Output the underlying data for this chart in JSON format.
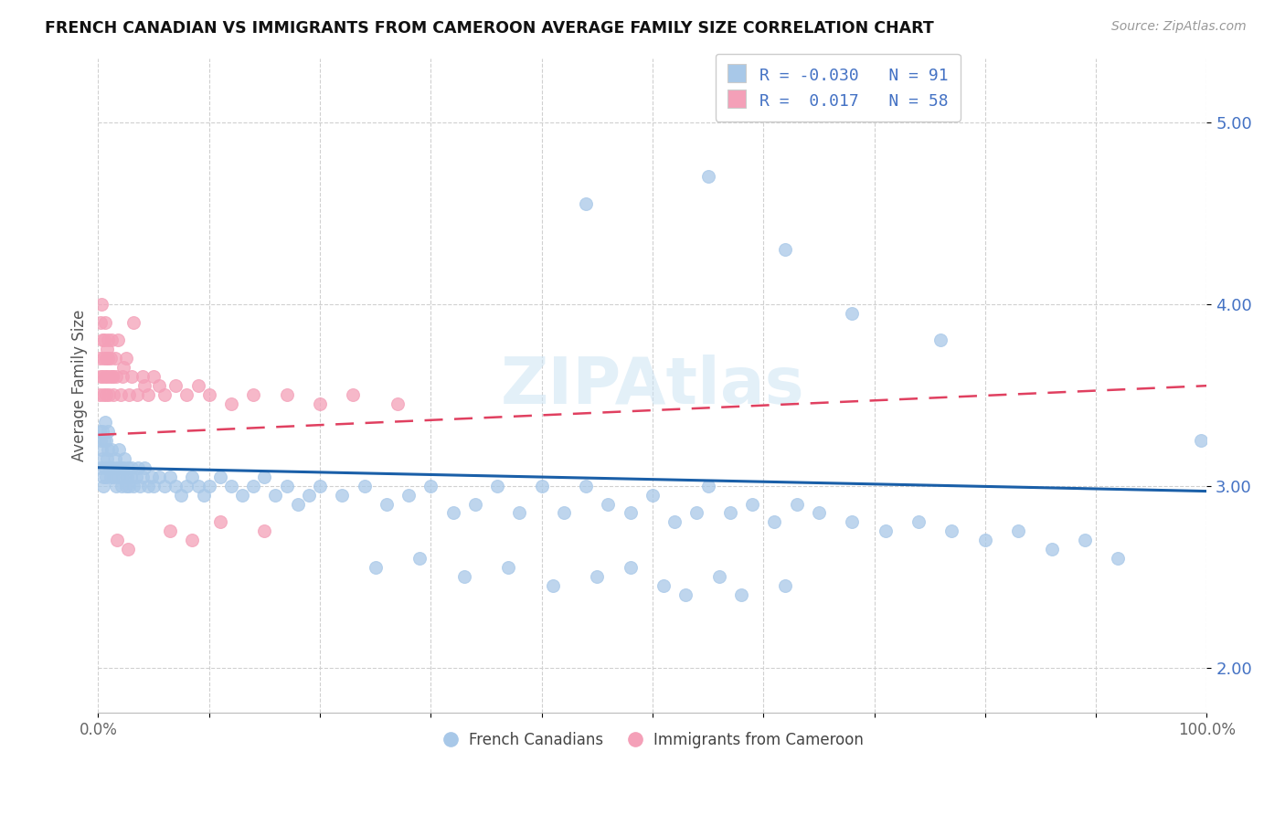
{
  "title": "FRENCH CANADIAN VS IMMIGRANTS FROM CAMEROON AVERAGE FAMILY SIZE CORRELATION CHART",
  "source": "Source: ZipAtlas.com",
  "ylabel": "Average Family Size",
  "xlim": [
    0,
    100
  ],
  "ylim": [
    1.75,
    5.35
  ],
  "yticks": [
    2.0,
    3.0,
    4.0,
    5.0
  ],
  "xtick_positions": [
    0,
    10,
    20,
    30,
    40,
    50,
    60,
    70,
    80,
    90,
    100
  ],
  "xtick_labels": [
    "0.0%",
    "",
    "",
    "",
    "",
    "",
    "",
    "",
    "",
    "",
    "100.0%"
  ],
  "background_color": "#ffffff",
  "grid_color": "#d0d0d0",
  "watermark": "ZIPAtlas",
  "legend_R1": "-0.030",
  "legend_N1": "91",
  "legend_R2": "0.017",
  "legend_N2": "58",
  "blue_color": "#a8c8e8",
  "pink_color": "#f4a0b8",
  "trendline_blue": "#1a5fa8",
  "trendline_pink": "#e04060",
  "french_canadians_x": [
    0.2,
    0.3,
    0.4,
    0.5,
    0.6,
    0.7,
    0.8,
    0.9,
    1.0,
    1.1,
    1.2,
    1.3,
    1.4,
    1.5,
    1.6,
    1.7,
    1.8,
    1.9,
    2.0,
    2.1,
    2.2,
    2.3,
    2.4,
    2.5,
    2.6,
    2.7,
    2.8,
    2.9,
    3.0,
    3.2,
    3.4,
    3.6,
    3.8,
    4.0,
    4.2,
    4.5,
    4.8,
    5.0,
    5.5,
    6.0,
    6.5,
    7.0,
    7.5,
    8.0,
    8.5,
    9.0,
    9.5,
    10.0,
    11.0,
    12.0,
    13.0,
    14.0,
    15.0,
    16.0,
    17.0,
    18.0,
    19.0,
    20.0,
    22.0,
    24.0,
    26.0,
    28.0,
    30.0,
    32.0,
    34.0,
    36.0,
    38.0,
    40.0,
    42.0,
    44.0,
    46.0,
    48.0,
    50.0,
    52.0,
    54.0,
    55.0,
    57.0,
    59.0,
    61.0,
    63.0,
    65.0,
    68.0,
    71.0,
    74.0,
    77.0,
    80.0,
    83.0,
    86.0,
    89.0,
    92.0,
    99.5
  ],
  "french_canadians_y": [
    3.1,
    3.2,
    3.15,
    3.0,
    3.1,
    3.05,
    3.15,
    3.2,
    3.1,
    3.05,
    3.2,
    3.1,
    3.05,
    3.15,
    3.0,
    3.1,
    3.05,
    3.2,
    3.1,
    3.0,
    3.05,
    3.1,
    3.15,
    3.0,
    3.05,
    3.1,
    3.0,
    3.05,
    3.1,
    3.0,
    3.05,
    3.1,
    3.0,
    3.05,
    3.1,
    3.0,
    3.05,
    3.0,
    3.05,
    3.0,
    3.05,
    3.0,
    2.95,
    3.0,
    3.05,
    3.0,
    2.95,
    3.0,
    3.05,
    3.0,
    2.95,
    3.0,
    3.05,
    2.95,
    3.0,
    2.9,
    2.95,
    3.0,
    2.95,
    3.0,
    2.9,
    2.95,
    3.0,
    2.85,
    2.9,
    3.0,
    2.85,
    3.0,
    2.85,
    3.0,
    2.9,
    2.85,
    2.95,
    2.8,
    2.85,
    3.0,
    2.85,
    2.9,
    2.8,
    2.9,
    2.85,
    2.8,
    2.75,
    2.8,
    2.75,
    2.7,
    2.75,
    2.65,
    2.7,
    2.6,
    3.25
  ],
  "french_canadians_y_outliers": [
    3.3,
    3.25,
    3.3,
    3.05,
    3.25,
    3.35,
    3.25,
    3.3,
    2.55,
    2.6,
    2.5,
    2.55,
    2.45,
    2.5,
    2.55,
    2.45,
    2.4,
    2.5,
    2.4,
    2.45,
    4.55,
    4.7,
    4.3,
    3.95,
    3.8
  ],
  "french_canadians_x_outliers": [
    0.15,
    0.25,
    0.35,
    0.45,
    0.55,
    0.65,
    0.75,
    0.85,
    25.0,
    29.0,
    33.0,
    37.0,
    41.0,
    45.0,
    48.0,
    51.0,
    53.0,
    56.0,
    58.0,
    62.0,
    44.0,
    55.0,
    62.0,
    68.0,
    76.0
  ],
  "cameroon_x": [
    0.1,
    0.15,
    0.2,
    0.25,
    0.3,
    0.35,
    0.4,
    0.45,
    0.5,
    0.55,
    0.6,
    0.65,
    0.7,
    0.75,
    0.8,
    0.85,
    0.9,
    0.95,
    1.0,
    1.1,
    1.2,
    1.3,
    1.4,
    1.5,
    1.6,
    1.8,
    2.0,
    2.2,
    2.5,
    2.8,
    3.0,
    3.5,
    4.0,
    4.5,
    5.0,
    5.5,
    6.0,
    7.0,
    8.0,
    9.0,
    10.0,
    12.0,
    14.0,
    17.0,
    20.0,
    23.0,
    27.0,
    3.2,
    1.3,
    0.8,
    2.3,
    4.2,
    1.7,
    2.7,
    6.5,
    8.5,
    11.0,
    15.0
  ],
  "cameroon_y": [
    3.5,
    3.7,
    3.9,
    3.6,
    4.0,
    3.8,
    3.6,
    3.7,
    3.5,
    3.8,
    3.6,
    3.9,
    3.7,
    3.5,
    3.6,
    3.8,
    3.7,
    3.5,
    3.6,
    3.7,
    3.8,
    3.6,
    3.5,
    3.7,
    3.6,
    3.8,
    3.5,
    3.6,
    3.7,
    3.5,
    3.6,
    3.5,
    3.6,
    3.5,
    3.6,
    3.55,
    3.5,
    3.55,
    3.5,
    3.55,
    3.5,
    3.45,
    3.5,
    3.5,
    3.45,
    3.5,
    3.45,
    3.9,
    3.6,
    3.75,
    3.65,
    3.55,
    2.7,
    2.65,
    2.75,
    2.7,
    2.8,
    2.75
  ]
}
